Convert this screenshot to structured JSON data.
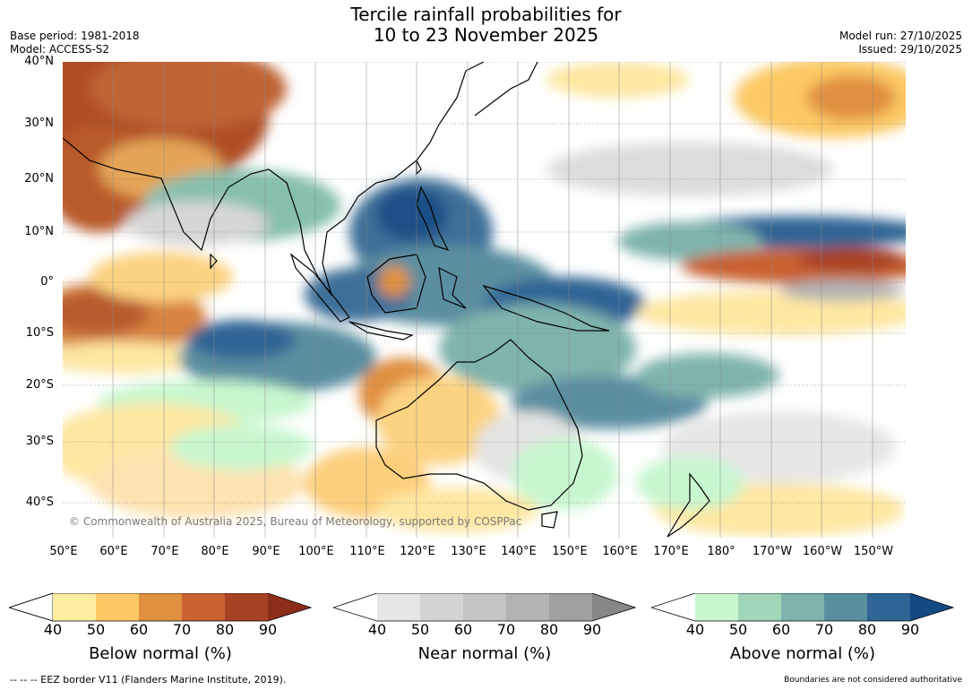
{
  "title": {
    "line1": "Tercile rainfall probabilities for",
    "line2": "10 to 23 November 2025"
  },
  "meta": {
    "base_period": "Base period: 1981-2018",
    "model": "Model: ACCESS-S2",
    "model_run": "Model run: 27/10/2025",
    "issued": "Issued: 29/10/2025"
  },
  "map": {
    "lat_labels": [
      "40°N",
      "30°N",
      "20°N",
      "10°N",
      "0°",
      "10°S",
      "20°S",
      "30°S",
      "40°S"
    ],
    "lon_labels": [
      "50°E",
      "60°E",
      "70°E",
      "80°E",
      "90°E",
      "100°E",
      "110°E",
      "120°E",
      "130°E",
      "140°E",
      "150°E",
      "160°E",
      "170°E",
      "180°",
      "170°W",
      "160°W",
      "150°W"
    ],
    "credit": "© Commonwealth of Australia 2025, Bureau of Meteorology, supported by COSPPac"
  },
  "colorbars": [
    {
      "title": "Below normal (%)",
      "ticks": [
        "40",
        "50",
        "60",
        "70",
        "80",
        "90"
      ],
      "colors": [
        "#ffeda0",
        "#fec965",
        "#e0903f",
        "#c96231",
        "#a84225",
        "#8c2d1a"
      ]
    },
    {
      "title": "Near normal (%)",
      "ticks": [
        "40",
        "50",
        "60",
        "70",
        "80",
        "90"
      ],
      "colors": [
        "#e6e6e6",
        "#d4d4d4",
        "#c4c4c4",
        "#b3b3b3",
        "#a0a0a0",
        "#878787"
      ]
    },
    {
      "title": "Above normal (%)",
      "ticks": [
        "40",
        "50",
        "60",
        "70",
        "80",
        "90"
      ],
      "colors": [
        "#c8f7cf",
        "#a1d6b8",
        "#7fb4ad",
        "#5a8fa0",
        "#2f6595",
        "#134a82"
      ]
    }
  ],
  "footer": {
    "eez": "--  --  -- EEZ border V11 (Flanders Marine Institute, 2019).",
    "disclaimer": "Boundaries are not considered authoritative"
  }
}
